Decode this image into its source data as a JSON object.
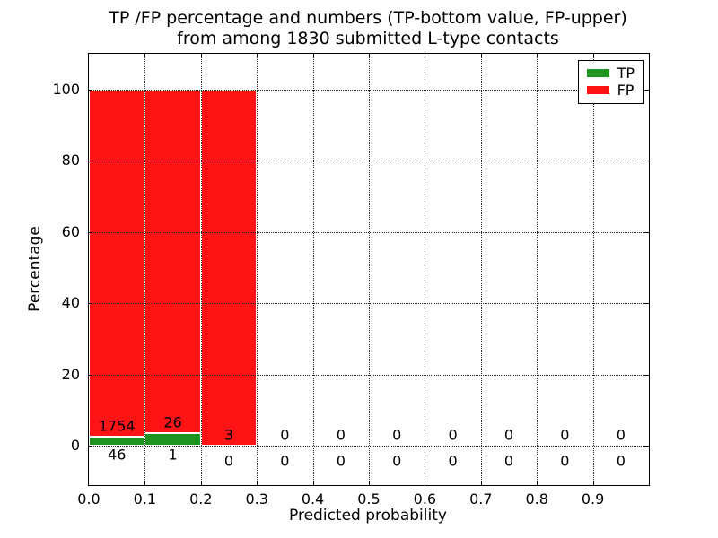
{
  "figure": {
    "title_line1": "TP /FP percentage and numbers (TP-bottom value, FP-upper)",
    "title_line2": "from among 1830 submitted L-type contacts"
  },
  "axes": {
    "xlabel": "Predicted probability",
    "ylabel": "Percentage",
    "x_tick_labels": [
      "0.0",
      "0.1",
      "0.2",
      "0.3",
      "0.4",
      "0.5",
      "0.6",
      "0.7",
      "0.8",
      "0.9"
    ],
    "y_tick_labels": [
      "0",
      "20",
      "40",
      "60",
      "80",
      "100"
    ]
  },
  "legend": {
    "items": [
      {
        "label": "TP",
        "color": "#1f9421"
      },
      {
        "label": "FP",
        "color": "#fe1414"
      }
    ]
  },
  "chart_data": {
    "type": "bar",
    "stacked": true,
    "title": "TP /FP percentage and numbers (TP-bottom value, FP-upper) from among 1830 submitted L-type contacts",
    "xlabel": "Predicted probability",
    "ylabel": "Percentage",
    "total_contacts": 1830,
    "bin_edges": [
      0.0,
      0.1,
      0.2,
      0.3,
      0.4,
      0.5,
      0.6,
      0.7,
      0.8,
      0.9,
      1.0
    ],
    "categories": [
      "0.0-0.1",
      "0.1-0.2",
      "0.2-0.3",
      "0.3-0.4",
      "0.4-0.5",
      "0.5-0.6",
      "0.6-0.7",
      "0.7-0.8",
      "0.8-0.9",
      "0.9-1.0"
    ],
    "series": [
      {
        "name": "TP",
        "color": "#1f9421",
        "counts": [
          46,
          1,
          0,
          0,
          0,
          0,
          0,
          0,
          0,
          0
        ],
        "percent": [
          2.56,
          3.7,
          0,
          0,
          0,
          0,
          0,
          0,
          0,
          0
        ]
      },
      {
        "name": "FP",
        "color": "#fe1414",
        "counts": [
          1754,
          26,
          3,
          0,
          0,
          0,
          0,
          0,
          0,
          0
        ],
        "percent": [
          97.44,
          96.3,
          100,
          0,
          0,
          0,
          0,
          0,
          0,
          0
        ]
      }
    ],
    "xlim": [
      0,
      1.0
    ],
    "ylim": [
      -11,
      110
    ],
    "x_ticks": [
      0.0,
      0.1,
      0.2,
      0.3,
      0.4,
      0.5,
      0.6,
      0.7,
      0.8,
      0.9
    ],
    "y_ticks": [
      0,
      20,
      40,
      60,
      80,
      100
    ],
    "grid": "dotted",
    "legend_position": "upper right",
    "annotation_note": "FP count printed above each bar's TP segment, TP count printed below the zero line"
  }
}
